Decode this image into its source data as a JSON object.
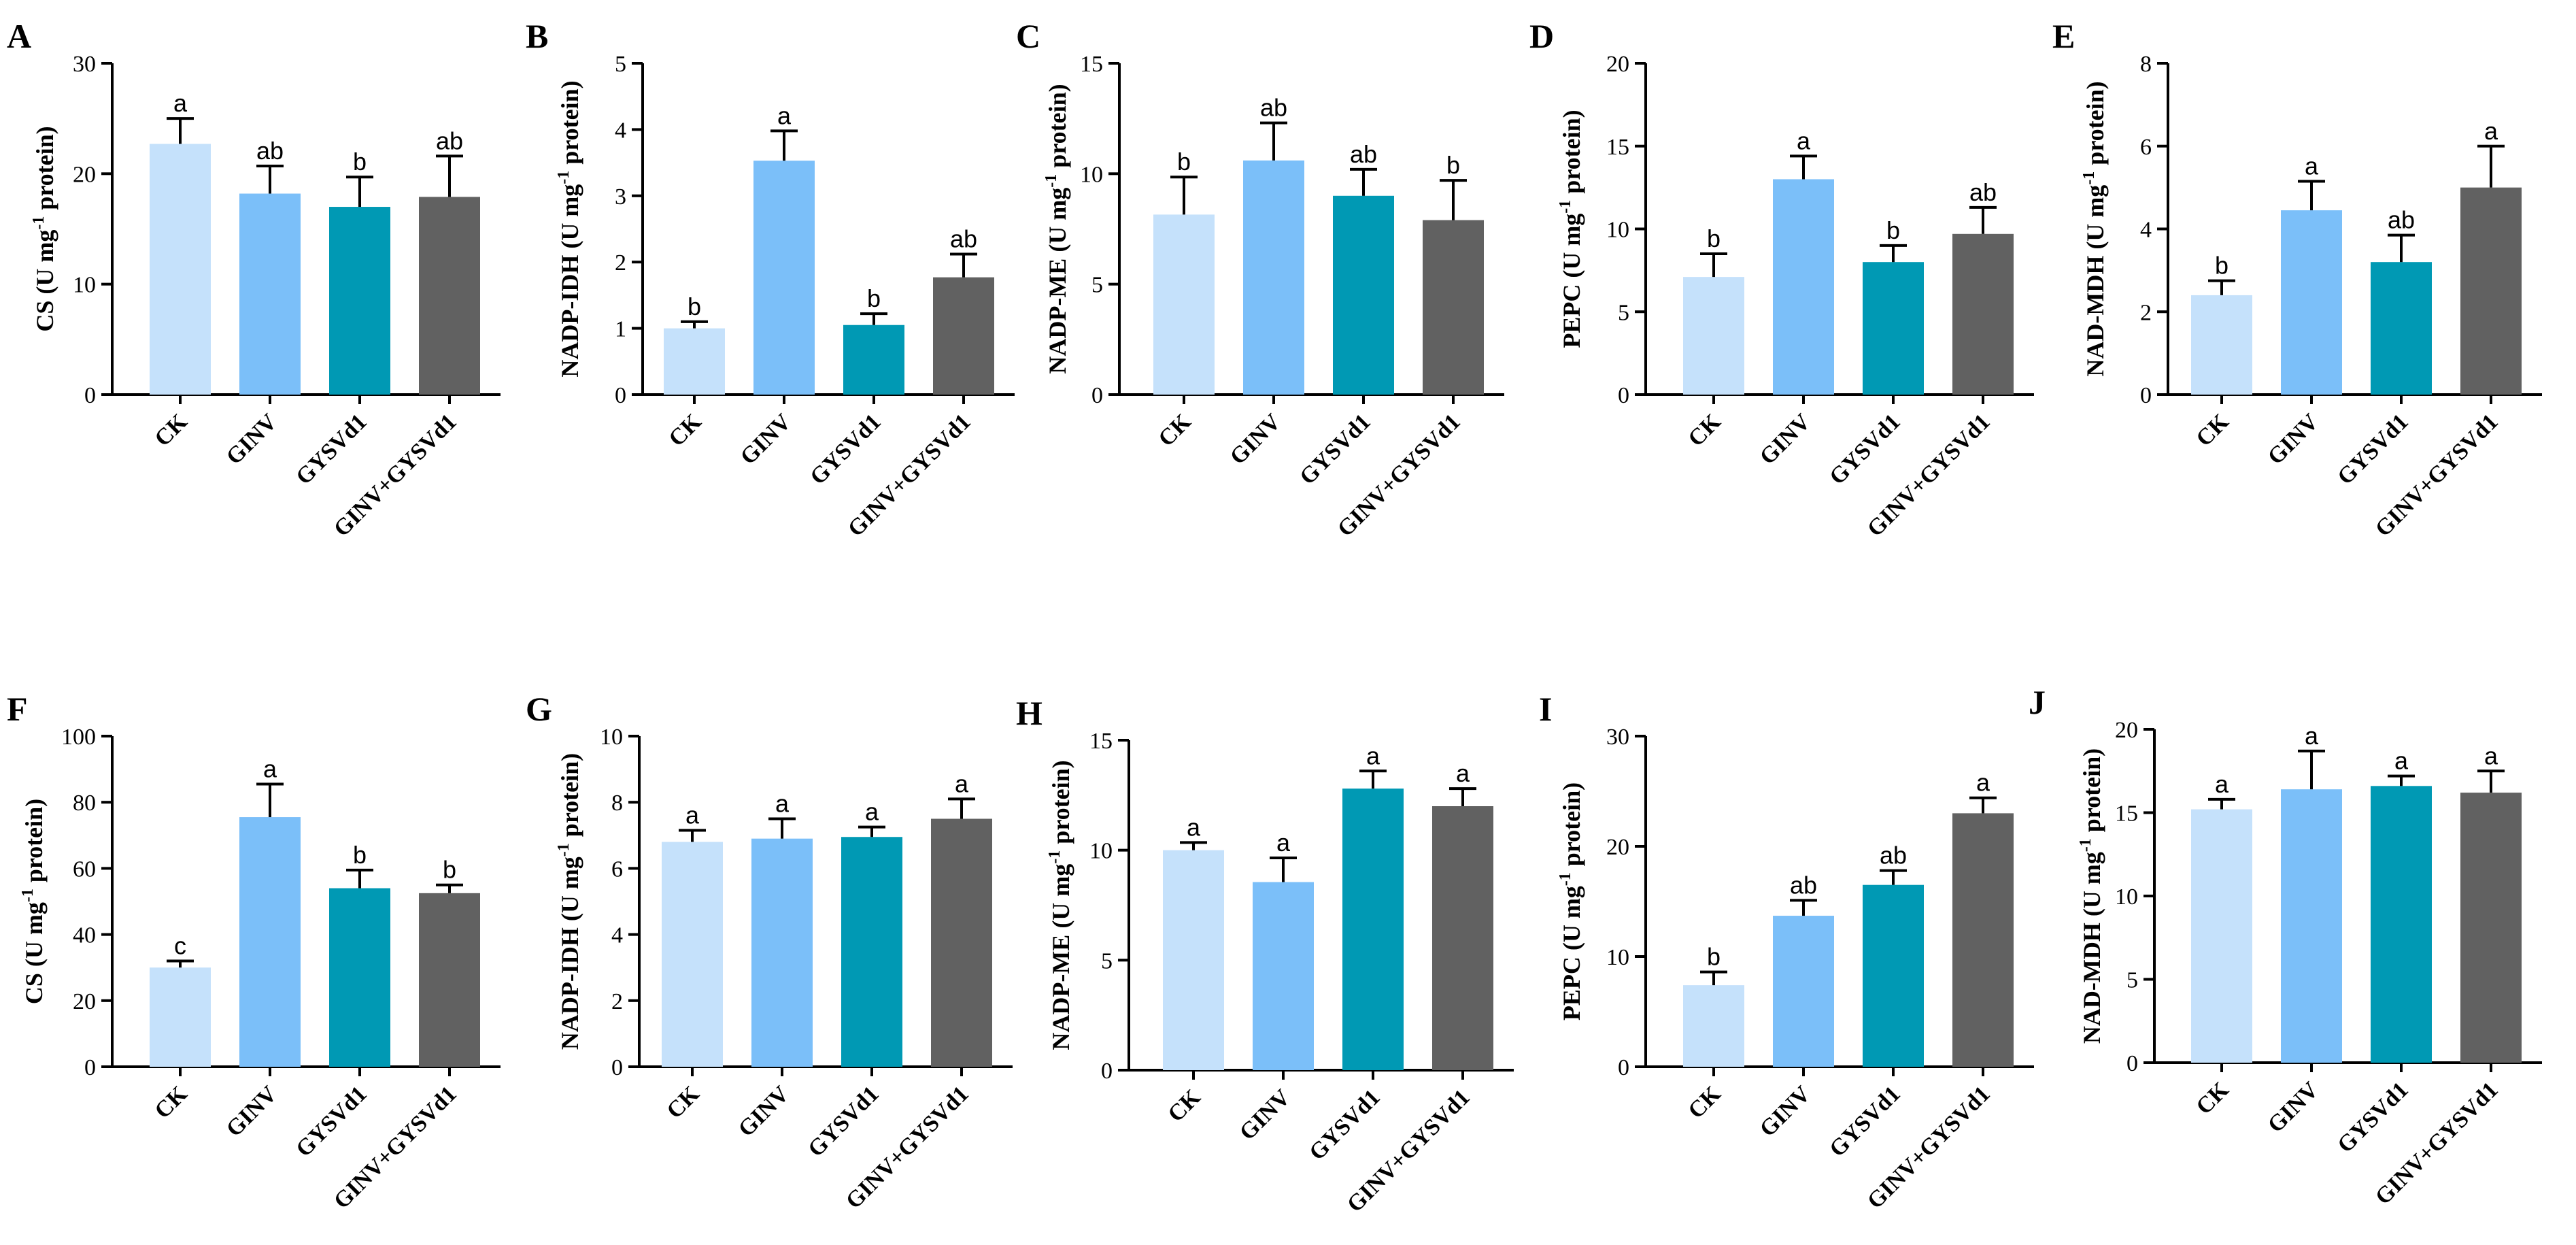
{
  "colors": {
    "CK": "#c5e1fb",
    "GINV": "#7bbff9",
    "GYSVd1": "#0099b4",
    "GINV+GYSVd1": "#616161"
  },
  "chart_data": [
    {
      "panel": "A",
      "type": "bar",
      "ylabel": "CS (U mg",
      "ylabel_sup": "-1",
      "ylabel_end": " protein)",
      "categories": [
        "CK",
        "GINV",
        "GYSVd1",
        "GINV+GYSVd1"
      ],
      "values": [
        22.7,
        18.2,
        17.0,
        17.9
      ],
      "errors": [
        2.3,
        2.5,
        2.7,
        3.7
      ],
      "significance": [
        "a",
        "ab",
        "b",
        "ab"
      ],
      "ylim": [
        0,
        30
      ],
      "yticks": [
        0,
        10,
        20,
        30
      ]
    },
    {
      "panel": "B",
      "type": "bar",
      "ylabel": "NADP-IDH (U mg",
      "ylabel_sup": "-1",
      "ylabel_end": " protein)",
      "categories": [
        "CK",
        "GINV",
        "GYSVd1",
        "GINV+GYSVd1"
      ],
      "values": [
        1.0,
        3.53,
        1.05,
        1.77
      ],
      "errors": [
        0.1,
        0.45,
        0.17,
        0.35
      ],
      "significance": [
        "b",
        "a",
        "b",
        "ab"
      ],
      "ylim": [
        0,
        5
      ],
      "yticks": [
        0,
        1,
        2,
        3,
        4,
        5
      ]
    },
    {
      "panel": "C",
      "type": "bar",
      "ylabel": "NADP-ME (U mg",
      "ylabel_sup": "-1",
      "ylabel_end": " protein)",
      "categories": [
        "CK",
        "GINV",
        "GYSVd1",
        "GINV+GYSVd1"
      ],
      "values": [
        8.15,
        10.6,
        9.0,
        7.9
      ],
      "errors": [
        1.7,
        1.7,
        1.2,
        1.8
      ],
      "significance": [
        "b",
        "ab",
        "ab",
        "b"
      ],
      "ylim": [
        0,
        15
      ],
      "yticks": [
        0,
        5,
        10,
        15
      ]
    },
    {
      "panel": "D",
      "type": "bar",
      "ylabel": "PEPC (U mg",
      "ylabel_sup": "-1",
      "ylabel_end": " protein)",
      "categories": [
        "CK",
        "GINV",
        "GYSVd1",
        "GINV+GYSVd1"
      ],
      "values": [
        7.1,
        13.0,
        8.0,
        9.7
      ],
      "errors": [
        1.4,
        1.4,
        1.0,
        1.6
      ],
      "significance": [
        "b",
        "a",
        "b",
        "ab"
      ],
      "ylim": [
        0,
        20
      ],
      "yticks": [
        0,
        5,
        10,
        15,
        20
      ]
    },
    {
      "panel": "E",
      "type": "bar",
      "ylabel": "NAD-MDH (U mg",
      "ylabel_sup": "-1",
      "ylabel_end": " protein)",
      "categories": [
        "CK",
        "GINV",
        "GYSVd1",
        "GINV+GYSVd1"
      ],
      "values": [
        2.4,
        4.45,
        3.2,
        5.0
      ],
      "errors": [
        0.35,
        0.7,
        0.65,
        1.0
      ],
      "significance": [
        "b",
        "a",
        "ab",
        "a"
      ],
      "ylim": [
        0,
        8
      ],
      "yticks": [
        0,
        2,
        4,
        6,
        8
      ]
    },
    {
      "panel": "F",
      "type": "bar",
      "ylabel": "CS (U mg",
      "ylabel_sup": "-1",
      "ylabel_end": " protein)",
      "categories": [
        "CK",
        "GINV",
        "GYSVd1",
        "GINV+GYSVd1"
      ],
      "values": [
        30.0,
        75.5,
        54.0,
        52.5
      ],
      "errors": [
        2.0,
        10.0,
        5.5,
        2.5
      ],
      "significance": [
        "c",
        "a",
        "b",
        "b"
      ],
      "ylim": [
        0,
        100
      ],
      "yticks": [
        0,
        20,
        40,
        60,
        80,
        100
      ]
    },
    {
      "panel": "G",
      "type": "bar",
      "ylabel": "NADP-IDH (U mg",
      "ylabel_sup": "-1",
      "ylabel_end": " protein)",
      "categories": [
        "CK",
        "GINV",
        "GYSVd1",
        "GINV+GYSVd1"
      ],
      "values": [
        6.8,
        6.9,
        6.95,
        7.5
      ],
      "errors": [
        0.35,
        0.6,
        0.3,
        0.6
      ],
      "significance": [
        "a",
        "a",
        "a",
        "a"
      ],
      "ylim": [
        0,
        10
      ],
      "yticks": [
        0,
        2,
        4,
        6,
        8,
        10
      ]
    },
    {
      "panel": "H",
      "type": "bar",
      "ylabel": "NADP-ME (U mg",
      "ylabel_sup": "-1",
      "ylabel_end": " protein)",
      "categories": [
        "CK",
        "GINV",
        "GYSVd1",
        "GINV+GYSVd1"
      ],
      "values": [
        10.0,
        8.55,
        12.8,
        12.0
      ],
      "errors": [
        0.35,
        1.1,
        0.8,
        0.8
      ],
      "significance": [
        "a",
        "a",
        "a",
        "a"
      ],
      "ylim": [
        0,
        15
      ],
      "yticks": [
        0,
        5,
        10,
        15
      ]
    },
    {
      "panel": "I",
      "type": "bar",
      "ylabel": "PEPC (U mg",
      "ylabel_sup": "-1",
      "ylabel_end": " protein)",
      "categories": [
        "CK",
        "GINV",
        "GYSVd1",
        "GINV+GYSVd1"
      ],
      "values": [
        7.4,
        13.7,
        16.5,
        23.0
      ],
      "errors": [
        1.2,
        1.4,
        1.3,
        1.4
      ],
      "significance": [
        "b",
        "ab",
        "ab",
        "a"
      ],
      "ylim": [
        0,
        30
      ],
      "yticks": [
        0,
        10,
        20,
        30
      ]
    },
    {
      "panel": "J",
      "type": "bar",
      "ylabel": "NAD-MDH (U mg",
      "ylabel_sup": "-1",
      "ylabel_end": " protein)",
      "categories": [
        "CK",
        "GINV",
        "GYSVd1",
        "GINV+GYSVd1"
      ],
      "values": [
        15.2,
        16.4,
        16.6,
        16.2
      ],
      "errors": [
        0.6,
        2.3,
        0.6,
        1.3
      ],
      "significance": [
        "a",
        "a",
        "a",
        "a"
      ],
      "ylim": [
        0,
        20
      ],
      "yticks": [
        0,
        5,
        10,
        15,
        20
      ]
    }
  ]
}
